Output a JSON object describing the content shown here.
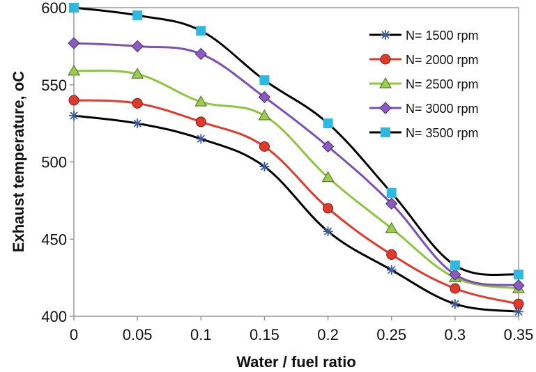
{
  "chart_data": {
    "type": "line",
    "xlabel": "Water / fuel ratio",
    "ylabel": "Exhaust temperature, oC",
    "x": [
      0,
      0.05,
      0.1,
      0.15,
      0.2,
      0.25,
      0.3,
      0.35
    ],
    "x_tick_labels": [
      "0",
      "0.05",
      "0.1",
      "0.15",
      "0.2",
      "0.25",
      "0.3",
      "0.35"
    ],
    "y_ticks": [
      400,
      450,
      500,
      550,
      600
    ],
    "xlim": [
      0,
      0.35
    ],
    "ylim": [
      400,
      600
    ],
    "grid": false,
    "legend_position": "top-right",
    "series": [
      {
        "name": "N= 1500 rpm",
        "marker": "asterisk",
        "marker_color": "#3a5a9a",
        "line_color": "#000000",
        "values": [
          530,
          525,
          515,
          497,
          455,
          430,
          408,
          403
        ]
      },
      {
        "name": "N= 2000 rpm",
        "marker": "circle",
        "marker_color": "#e03a2c",
        "line_color": "#e03a2c",
        "values": [
          540,
          538,
          526,
          510,
          470,
          440,
          418,
          408
        ]
      },
      {
        "name": "N= 2500 rpm",
        "marker": "triangle",
        "marker_color": "#9acd50",
        "line_color": "#8cc63f",
        "values": [
          559,
          557,
          539,
          530,
          490,
          457,
          425,
          418
        ]
      },
      {
        "name": "N= 3000 rpm",
        "marker": "diamond",
        "marker_color": "#8c5bbf",
        "line_color": "#7e4fb3",
        "values": [
          577,
          575,
          570,
          542,
          510,
          473,
          427,
          420
        ]
      },
      {
        "name": "N= 3500 rpm",
        "marker": "square",
        "marker_color": "#2fb8e0",
        "line_color": "#000000",
        "values": [
          600,
          595,
          585,
          553,
          525,
          480,
          433,
          427
        ]
      }
    ]
  }
}
